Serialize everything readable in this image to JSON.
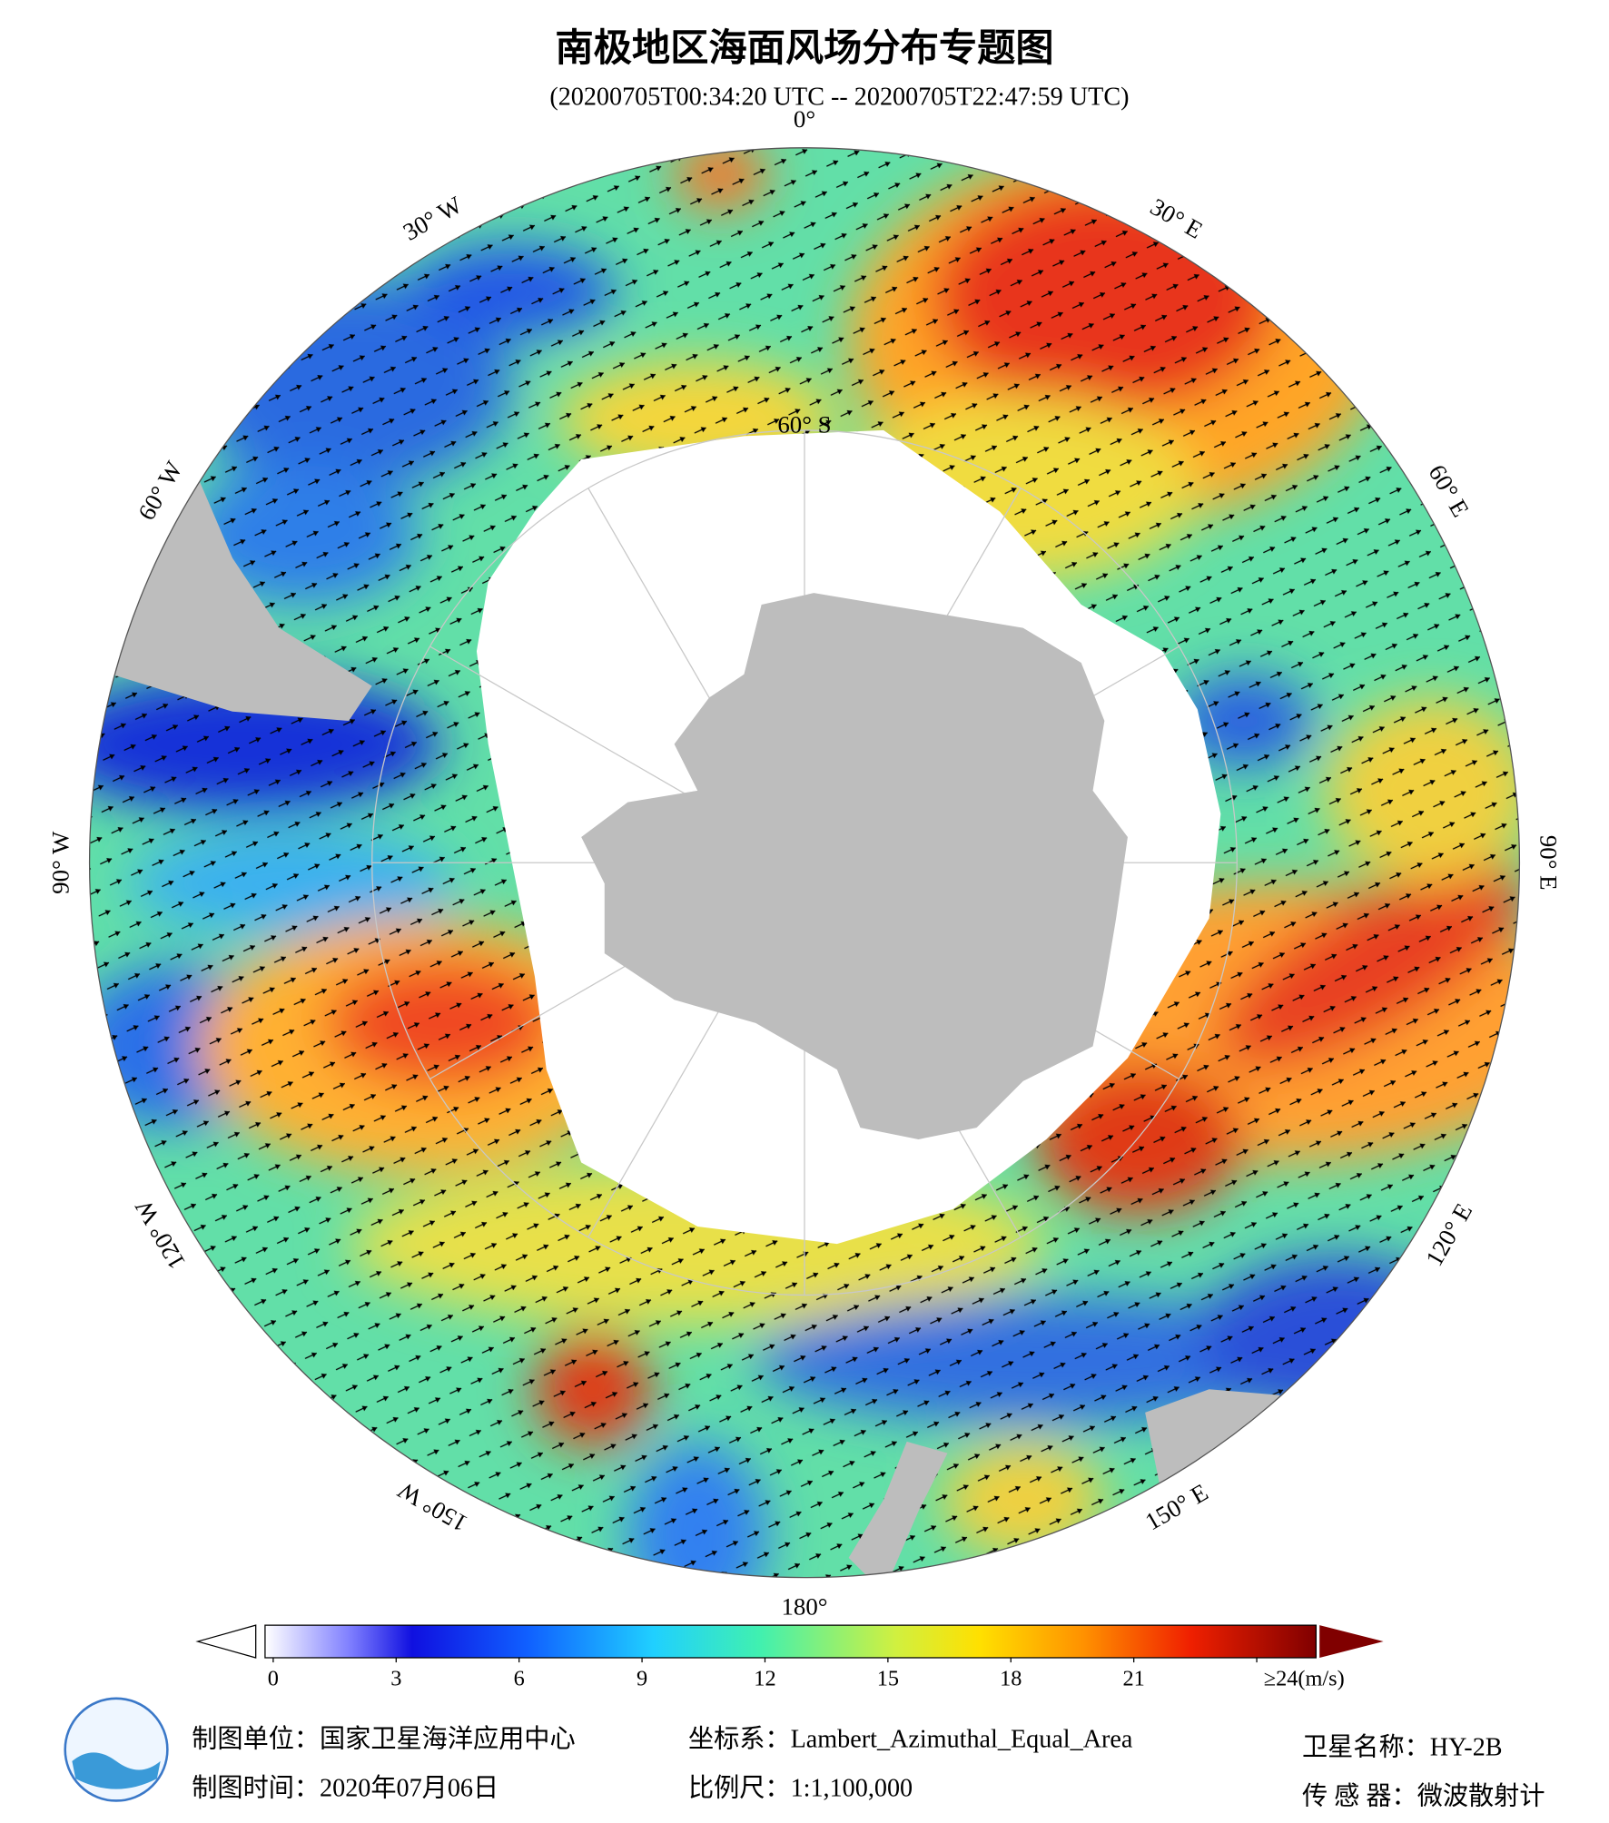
{
  "title": "南极地区海面风场分布专题图",
  "subtitle": "(20200705T00:34:20 UTC -- 20200705T22:47:59 UTC)",
  "map": {
    "longitude_labels": [
      "0°",
      "30° E",
      "60° E",
      "90° E",
      "120° E",
      "150° E",
      "180°",
      "150° W",
      "120° W",
      "90° W",
      "60° W",
      "30° W"
    ],
    "latitude_label": "60° S"
  },
  "colorbar": {
    "ticks": [
      0,
      3,
      6,
      9,
      12,
      15,
      18,
      21,
      {
        "value": 24,
        "label": "≥24(m/s)"
      }
    ]
  },
  "footer": {
    "organization": "制图单位：国家卫星海洋应用中心",
    "date": "制图时间：2020年07月06日",
    "projection": "坐标系：Lambert_Azimuthal_Equal_Area",
    "scale": "比例尺：1:1,100,000",
    "satellite": "卫星名称：HY-2B",
    "sensor": "传 感 器：微波散射计"
  }
}
